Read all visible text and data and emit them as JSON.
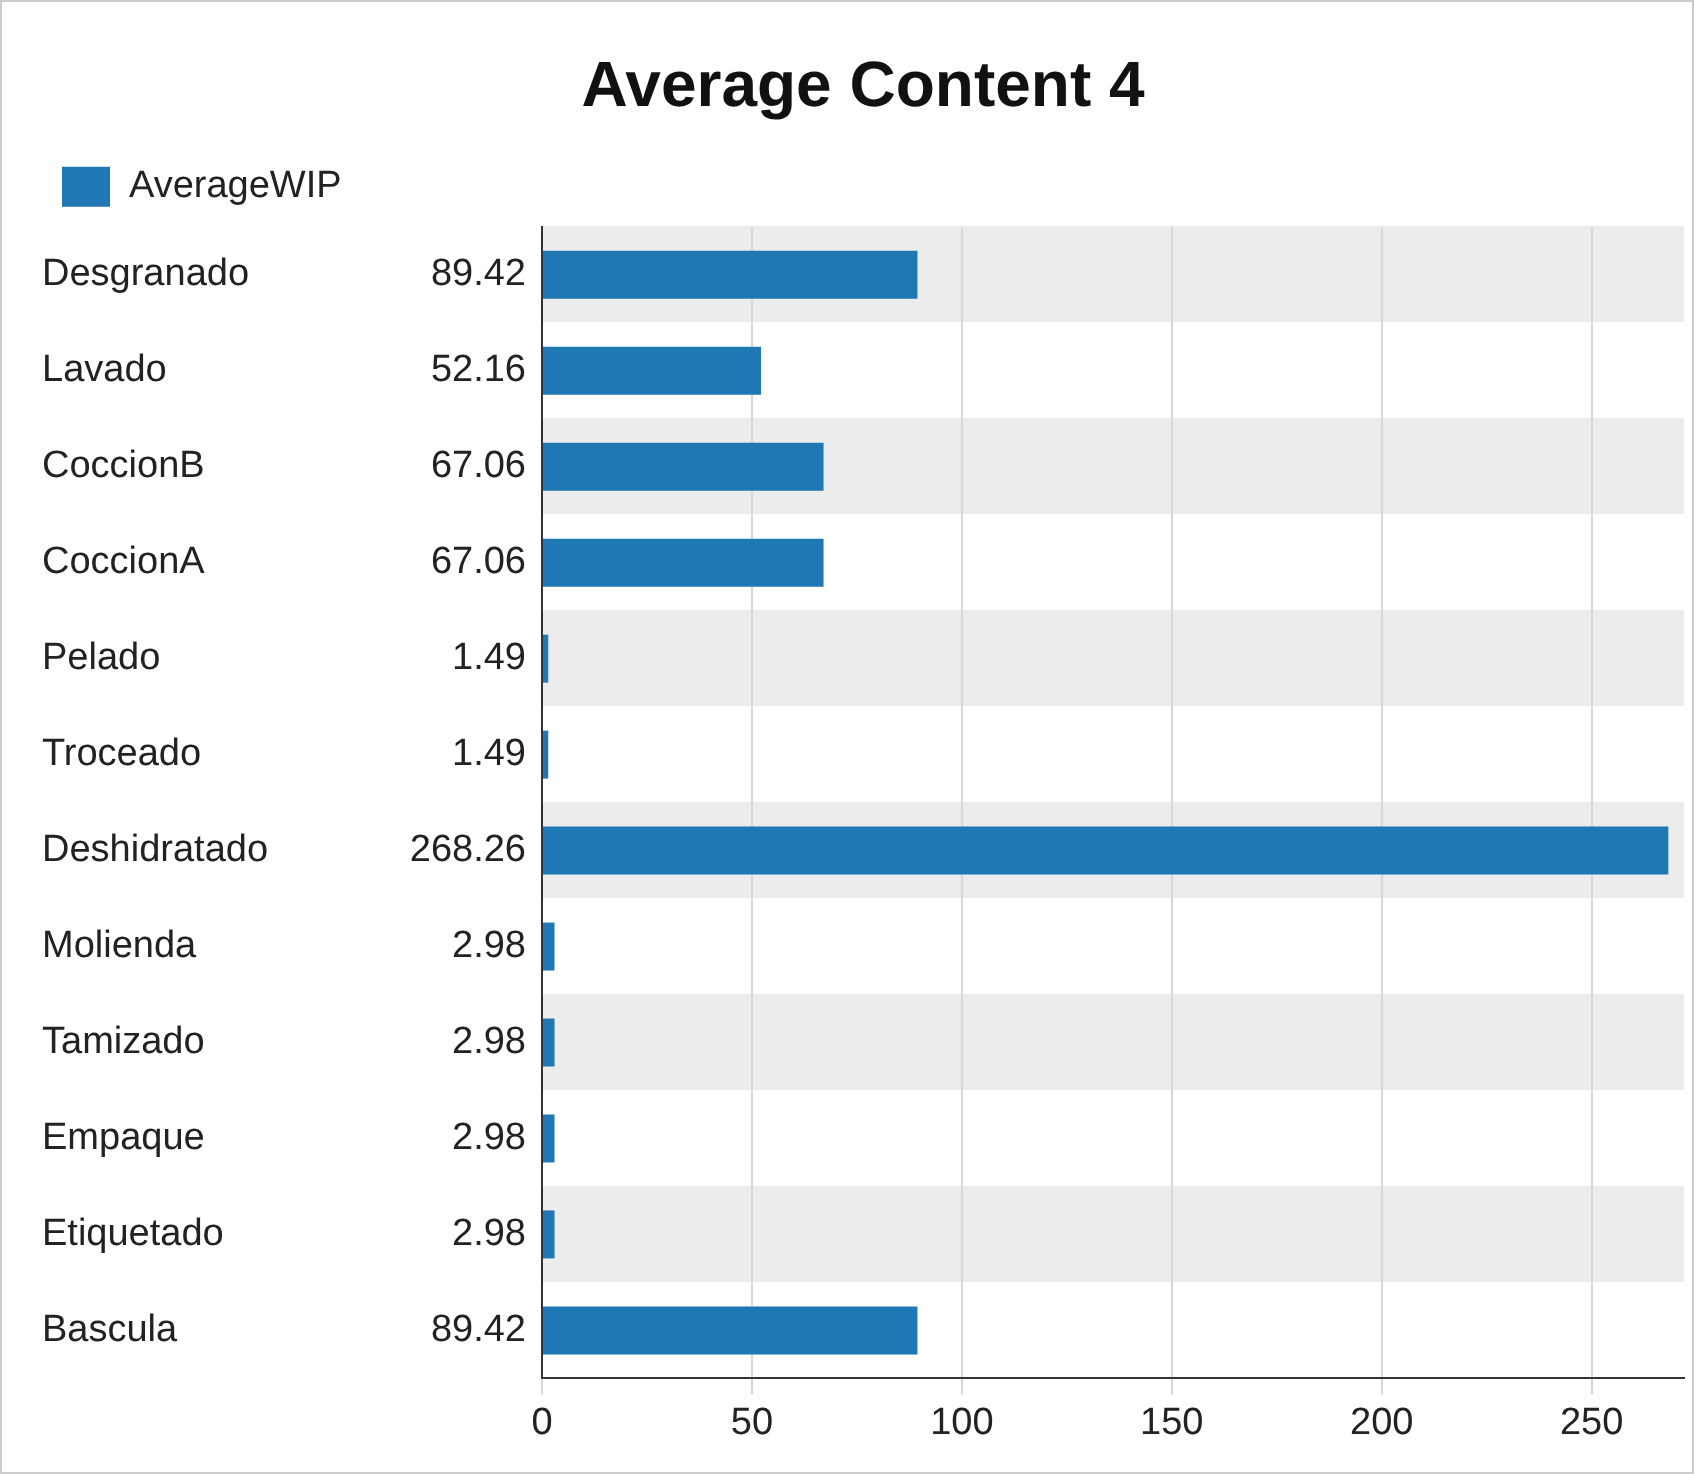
{
  "chart_data": {
    "type": "bar",
    "orientation": "horizontal",
    "title": "Average Content 4",
    "categories": [
      "Desgranado",
      "Lavado",
      "CoccionB",
      "CoccionA",
      "Pelado",
      "Troceado",
      "Deshidratado",
      "Molienda",
      "Tamizado",
      "Empaque",
      "Etiquetado",
      "Bascula"
    ],
    "series": [
      {
        "name": "AverageWIP",
        "color": "#1f77b4",
        "values": [
          89.42,
          52.16,
          67.06,
          67.06,
          1.49,
          1.49,
          268.26,
          2.98,
          2.98,
          2.98,
          2.98,
          89.42
        ]
      }
    ],
    "xlim": [
      0,
      272
    ],
    "xticks": [
      0,
      50,
      100,
      150,
      200,
      250
    ],
    "grid": "x",
    "legend": "top left",
    "data_labels": true
  }
}
